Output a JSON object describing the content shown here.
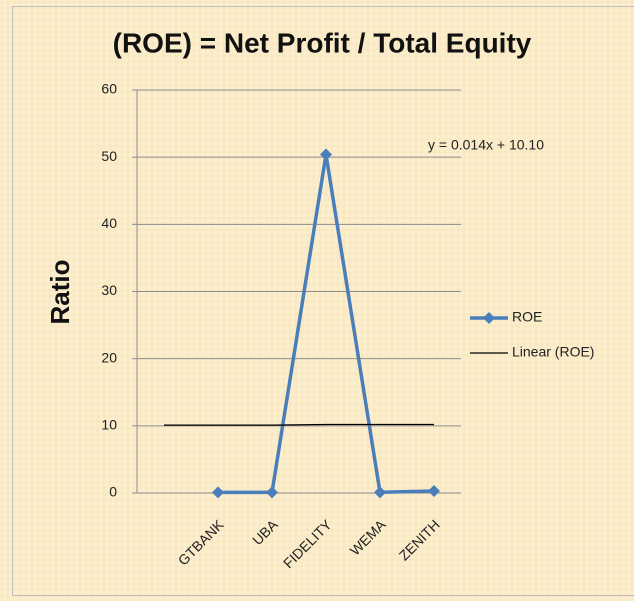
{
  "chart_data": {
    "type": "line",
    "title": "(ROE) = Net Profit / Total Equity",
    "y_label": "Ratio",
    "annotation": "y = 0.014x + 10.10",
    "categories": [
      null,
      "GTBANK",
      "UBA",
      "FIDELITY",
      "WEMA",
      "ZENITH"
    ],
    "series": [
      {
        "name": "ROE",
        "color": "#4a7ebb",
        "values": [
          null,
          0.1,
          0.1,
          50.4,
          0.1,
          0.3
        ],
        "marker": "diamond"
      },
      {
        "name": "Linear (ROE)",
        "color": "#000000",
        "values": [
          10.1,
          10.1,
          10.1,
          10.2,
          10.2,
          10.2
        ],
        "marker": "none"
      }
    ],
    "ylim": [
      0,
      60
    ],
    "yticks": [
      0,
      10,
      20,
      30,
      40,
      50,
      60
    ],
    "grid": true,
    "legend": "right"
  }
}
